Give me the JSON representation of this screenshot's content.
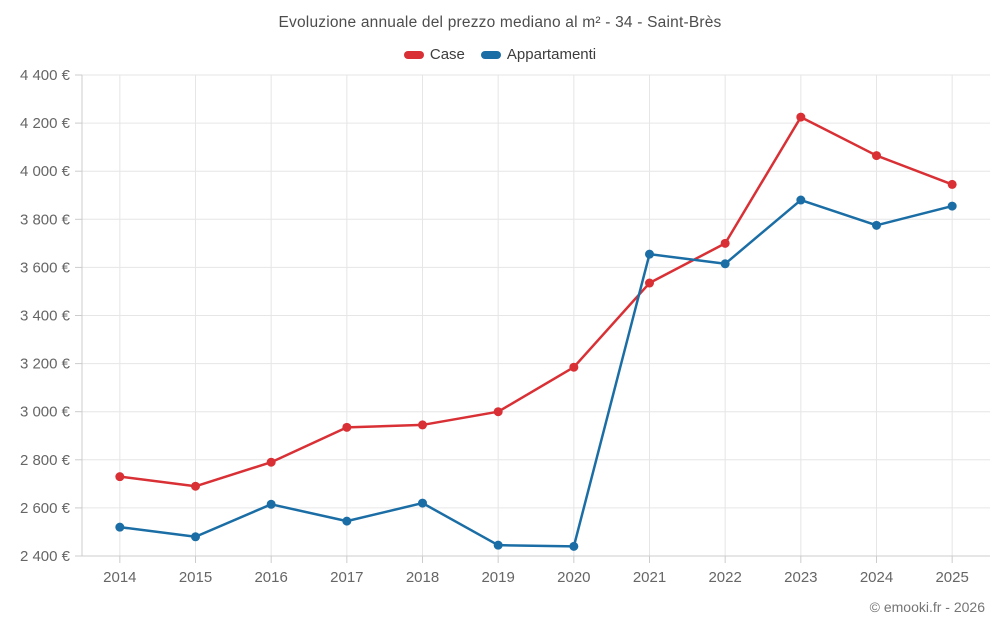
{
  "chart_data": {
    "type": "line",
    "title": "Evoluzione annuale del prezzo mediano al m² - 34 - Saint-Brès",
    "categories": [
      "2014",
      "2015",
      "2016",
      "2017",
      "2018",
      "2019",
      "2020",
      "2021",
      "2022",
      "2023",
      "2024",
      "2025"
    ],
    "series": [
      {
        "name": "Case",
        "color": "#d93035",
        "values": [
          2730,
          2690,
          2790,
          2935,
          2945,
          3000,
          3185,
          3535,
          3700,
          4225,
          4065,
          3945
        ]
      },
      {
        "name": "Appartamenti",
        "color": "#1b6ea5",
        "values": [
          2520,
          2480,
          2615,
          2545,
          2620,
          2445,
          2440,
          3655,
          3615,
          3880,
          3775,
          3855
        ]
      }
    ],
    "xlabel": "",
    "ylabel": "",
    "ylim": [
      2400,
      4400
    ],
    "y_tick_step": 200,
    "y_tick_labels": [
      "2 400 €",
      "2 600 €",
      "2 800 €",
      "3 000 €",
      "3 200 €",
      "3 400 €",
      "3 600 €",
      "3 800 €",
      "4 000 €",
      "4 200 €",
      "4 400 €"
    ],
    "grid": true,
    "legend_position": "top",
    "grid_color": "#e6e6e6",
    "axis_color": "#cccccc",
    "tick_label_color": "#666666"
  },
  "footer": {
    "copyright": "© emooki.fr - 2026"
  }
}
